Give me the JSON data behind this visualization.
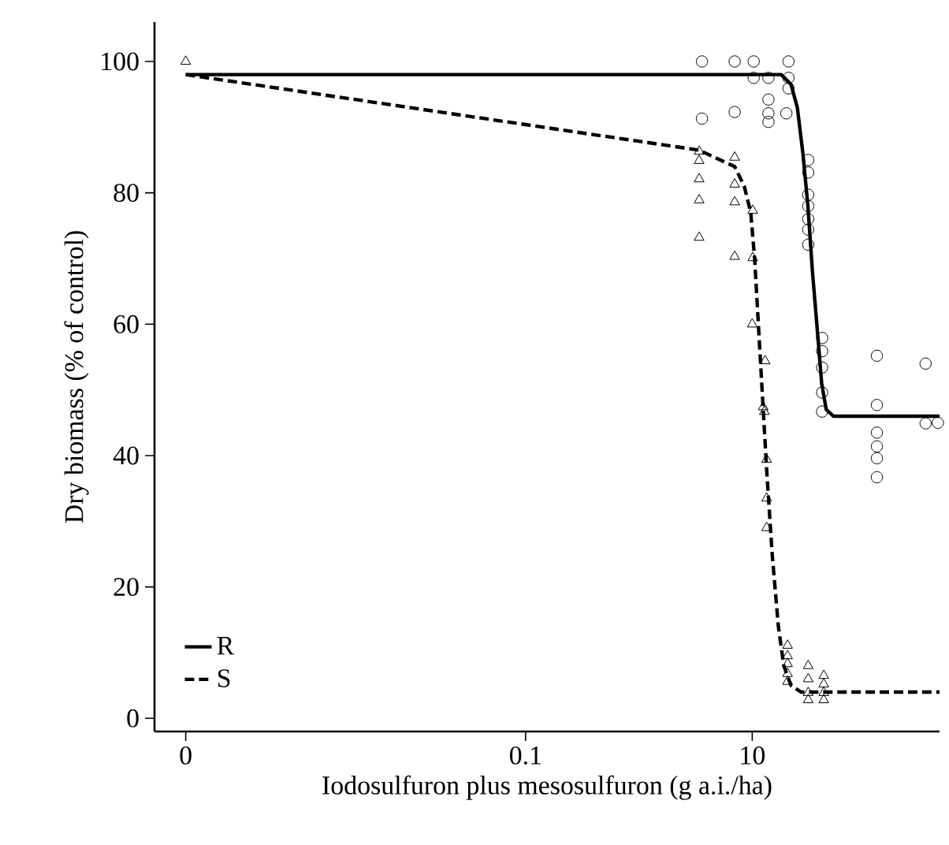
{
  "chart_data": {
    "type": "line",
    "xlabel": "Iodosulfuron plus mesosulfuron (g a.i./ha)",
    "ylabel": "Dry biomass (% of control)",
    "log": "x",
    "xlim": [
      5.3e-05,
      450
    ],
    "ylim": [
      -2,
      106
    ],
    "xticks": [
      {
        "value": 0.0001,
        "label": "0"
      },
      {
        "value": 0.1,
        "label": "0.1"
      },
      {
        "value": 10,
        "label": "10"
      }
    ],
    "yticks": [
      0,
      20,
      40,
      60,
      80,
      100
    ],
    "grid": false,
    "legend": "bottom left",
    "series": [
      {
        "name": "R",
        "color": "#000000",
        "line_style": "solid",
        "x": [
          0.0001,
          18,
          22,
          25,
          28,
          31,
          34,
          38,
          41,
          45,
          52,
          450
        ],
        "values": [
          98,
          98,
          96.5,
          93,
          86,
          78,
          68,
          58,
          51,
          47,
          46,
          46
        ]
      },
      {
        "name": "S",
        "color": "#000000",
        "line_style": "dashed",
        "x": [
          0.0001,
          3.4,
          7,
          8.5,
          9.7,
          10.5,
          11.5,
          12.5,
          13.5,
          15,
          17,
          19,
          22,
          27,
          450
        ],
        "values": [
          98,
          86.5,
          84,
          81,
          77,
          70,
          58,
          47,
          37,
          25,
          14,
          8,
          5,
          4,
          4
        ]
      },
      {
        "type": "scatter",
        "color": "#000000",
        "marker": "circle",
        "x": [
          3.6,
          7.0,
          10.3,
          20.9,
          10.3,
          13.9,
          20.9,
          20.9,
          13.9,
          13.9,
          13.9,
          20.0,
          3.6,
          7.0,
          31.2,
          31.2,
          31.2,
          31.2,
          31.2,
          31.2,
          31.2,
          41.4,
          41.4,
          41.4,
          41.4,
          41.4,
          126,
          126,
          126,
          126,
          126,
          126,
          339,
          339,
          435
        ],
        "values": [
          100,
          100,
          100,
          100,
          97.5,
          97.5,
          97.5,
          95.9,
          94.2,
          92.1,
          90.8,
          92.1,
          91.3,
          92.3,
          85.0,
          83.1,
          79.7,
          78.0,
          76.0,
          74.4,
          72.1,
          57.9,
          55.9,
          53.4,
          49.6,
          46.7,
          55.2,
          47.7,
          43.5,
          41.4,
          39.6,
          36.7,
          54.0,
          44.9,
          45
        ]
      },
      {
        "type": "scatter",
        "color": "#000000",
        "marker": "triangle",
        "x": [
          0.0001,
          3.4,
          3.4,
          3.4,
          3.4,
          3.4,
          7.0,
          7.0,
          7.0,
          7.0,
          10.1,
          10.1,
          10.0,
          13.0,
          12.8,
          12.5,
          13.4,
          13.4,
          13.4,
          20.5,
          20.5,
          20.5,
          20.5,
          20.5,
          31.2,
          31.2,
          31.2,
          31.2,
          42.8,
          42.8,
          42.8,
          42.8
        ],
        "values": [
          100,
          86.3,
          84.9,
          82.1,
          78.9,
          73.2,
          85.4,
          81.3,
          78.6,
          70.3,
          77.3,
          70.1,
          60.0,
          54.4,
          46.7,
          47.4,
          39.4,
          33.5,
          29.0,
          11.1,
          9.5,
          8.3,
          6.8,
          5.6,
          8.0,
          6.0,
          3.9,
          2.8,
          6.5,
          5.2,
          3.9,
          2.8
        ]
      }
    ]
  }
}
